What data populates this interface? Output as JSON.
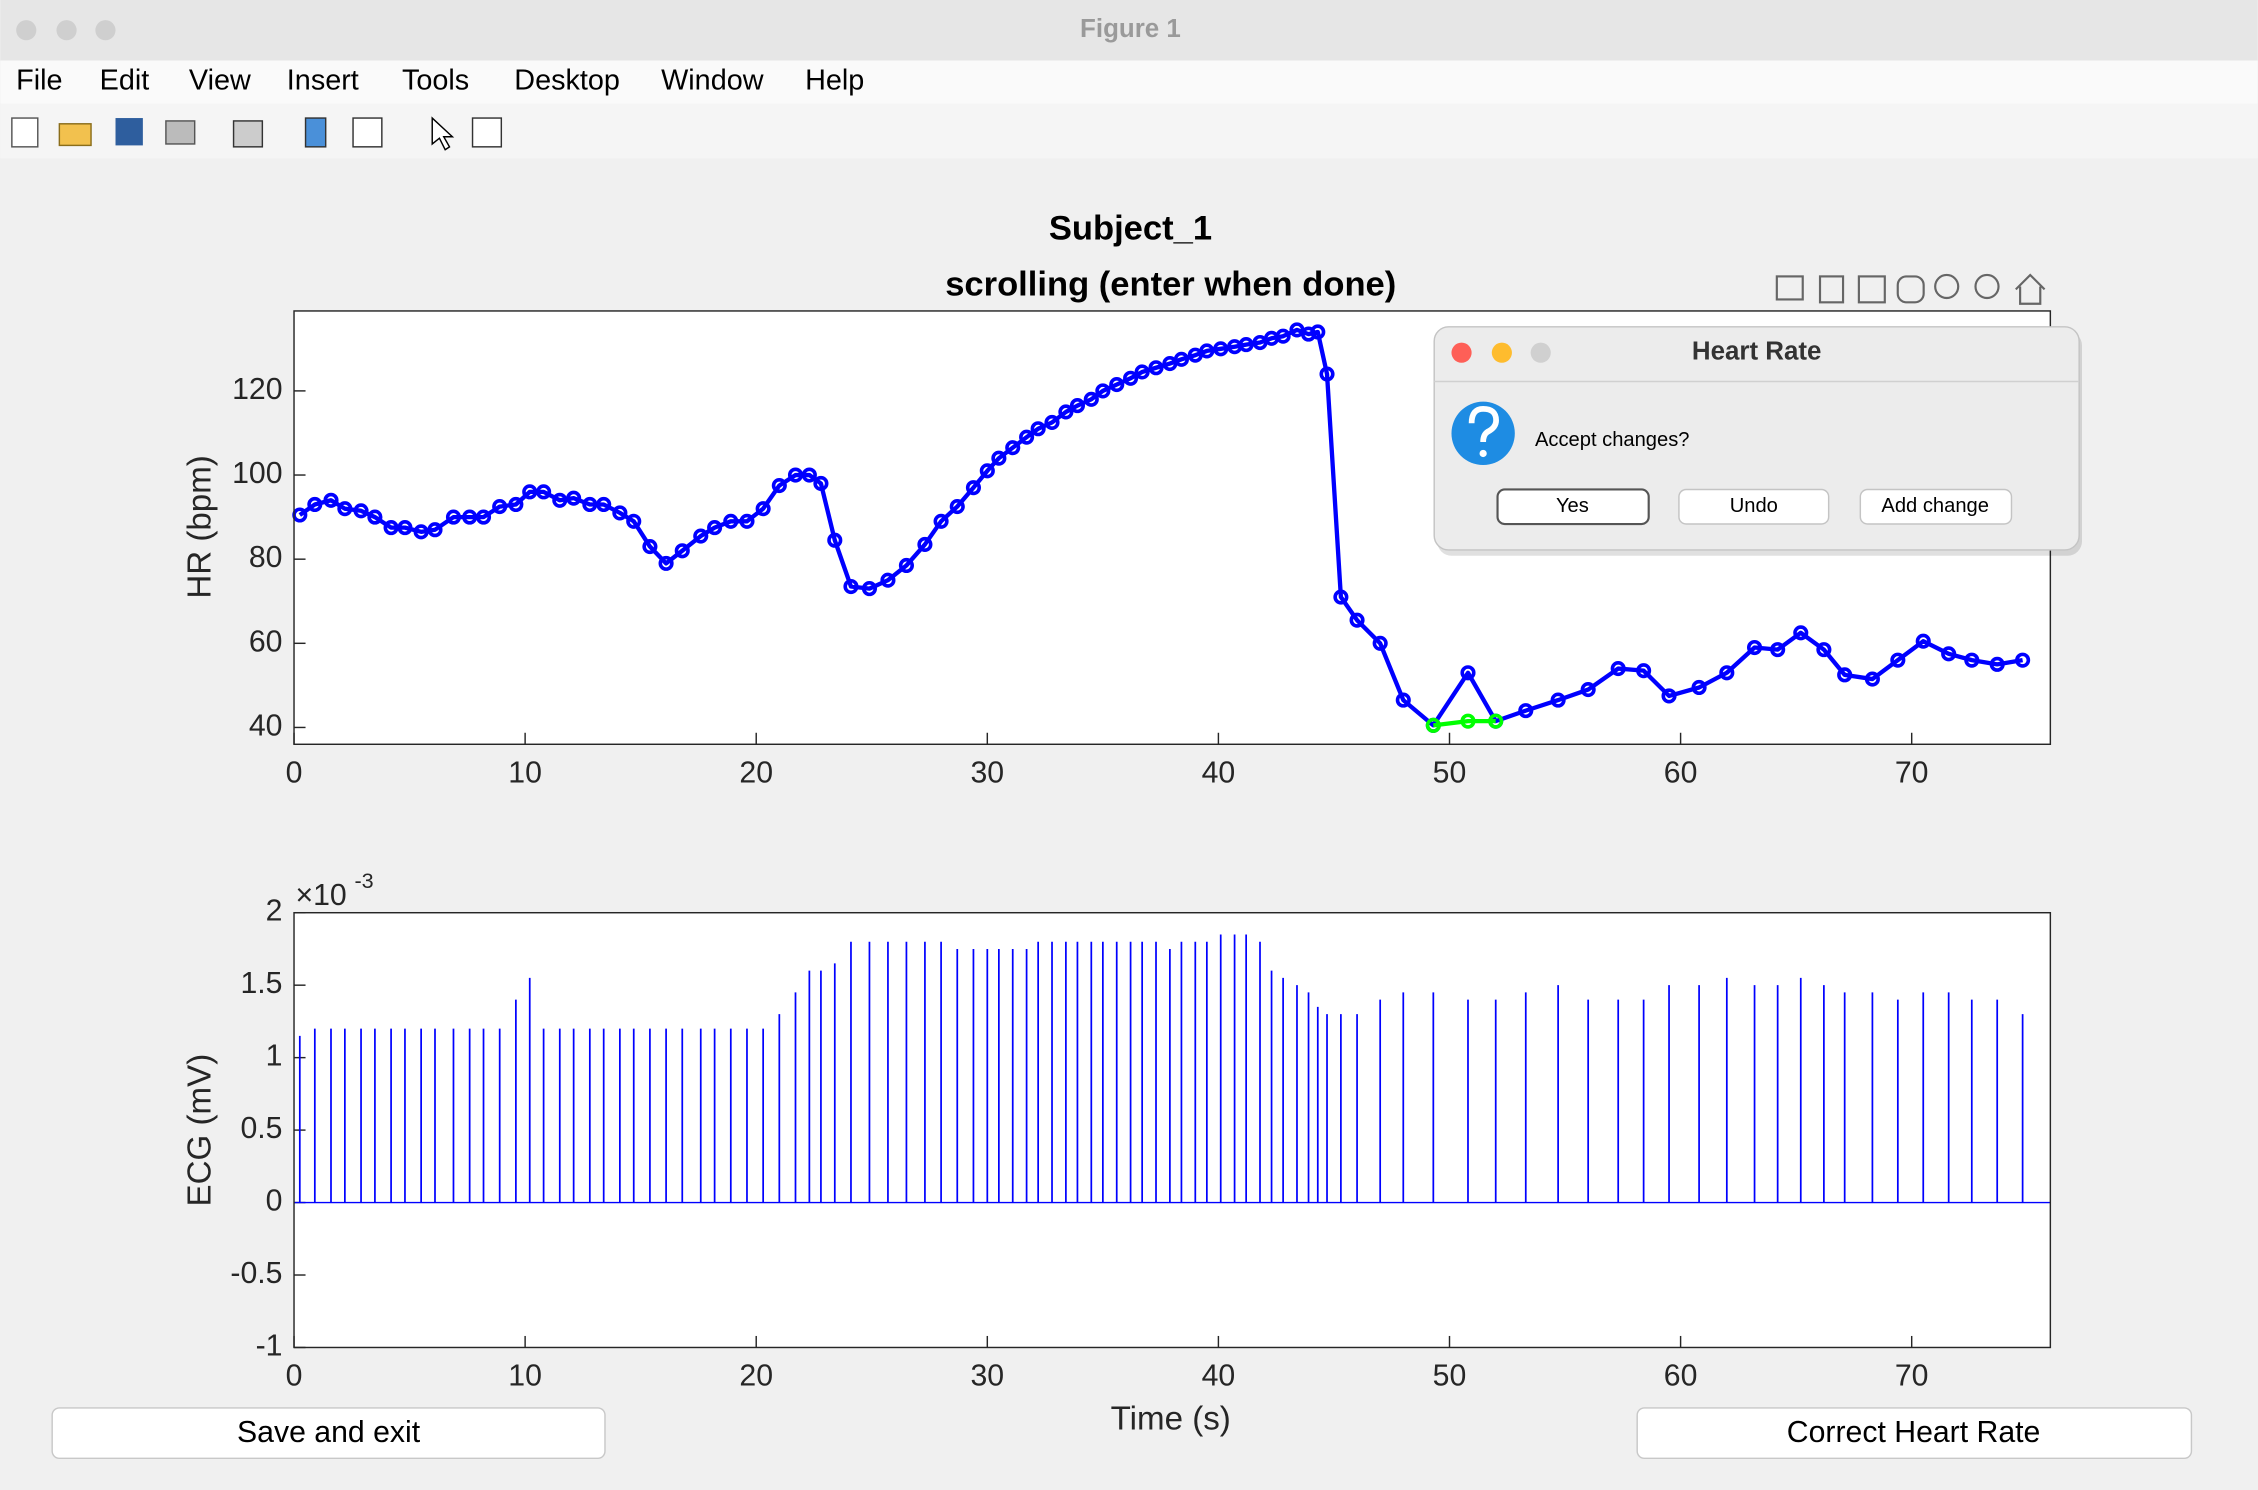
{
  "window": {
    "title": "Figure 1",
    "menu": [
      "File",
      "Edit",
      "View",
      "Insert",
      "Tools",
      "Desktop",
      "Window",
      "Help"
    ]
  },
  "chart_data": [
    {
      "type": "line",
      "title": "Subject_1",
      "subtitle": "scrolling (enter when done)",
      "y_label": "HR (bpm)",
      "xlim": [
        0,
        76
      ],
      "ylim": [
        36,
        139
      ],
      "xticks": [
        0,
        10,
        20,
        30,
        40,
        50,
        60,
        70
      ],
      "yticks": [
        40,
        60,
        80,
        100,
        120
      ],
      "series": [
        {
          "color": "#0000ff",
          "x": [
            0.25,
            0.9,
            1.6,
            2.2,
            2.9,
            3.5,
            4.2,
            4.8,
            5.5,
            6.1,
            6.9,
            7.6,
            8.2,
            8.9,
            9.6,
            10.2,
            10.8,
            11.5,
            12.1,
            12.8,
            13.4,
            14.1,
            14.7,
            15.4,
            16.1,
            16.8,
            17.6,
            18.2,
            18.9,
            19.6,
            20.3,
            21.0,
            21.7,
            22.3,
            22.8,
            23.4,
            24.1,
            24.9,
            25.7,
            26.5,
            27.3,
            28.0,
            28.7,
            29.4,
            30.0,
            30.5,
            31.1,
            31.7,
            32.2,
            32.8,
            33.4,
            33.9,
            34.5,
            35.0,
            35.6,
            36.2,
            36.7,
            37.3,
            37.9,
            38.4,
            39.0,
            39.5,
            40.1,
            40.7,
            41.2,
            41.8,
            42.3,
            42.8,
            43.4,
            43.9,
            44.3,
            44.7,
            45.3,
            46.0,
            47.0,
            48.0,
            49.3,
            50.8,
            52.0,
            53.3,
            54.7,
            56.0,
            57.3,
            58.4,
            59.5,
            60.8,
            62.0,
            63.2,
            64.2,
            65.2,
            66.2,
            67.1,
            68.3,
            69.4,
            70.5,
            71.6,
            72.6,
            73.7,
            74.8
          ],
          "values": [
            90.5,
            93,
            94,
            92,
            91.5,
            90,
            87.5,
            87.5,
            86.5,
            87,
            90,
            90,
            90,
            92.5,
            93,
            96,
            96,
            94,
            94.5,
            93,
            93,
            91,
            89,
            83,
            79,
            82,
            85.5,
            87.5,
            89,
            89,
            92,
            97.5,
            100,
            100,
            98,
            84.5,
            73.5,
            73,
            75,
            78.5,
            83.5,
            89,
            92.5,
            97,
            101,
            104,
            106.5,
            109,
            111,
            112.5,
            115,
            116.5,
            118,
            120,
            121.5,
            123,
            124.5,
            125.5,
            126.5,
            127.5,
            128.5,
            129.5,
            130,
            130.5,
            131,
            131.5,
            132.5,
            133,
            134.5,
            133.5,
            134,
            124,
            71,
            65.5,
            60,
            46.5,
            40.5,
            53,
            41.5,
            44,
            46.5,
            49,
            54,
            53.5,
            47.5,
            49.5,
            53,
            59,
            58.5,
            62.5,
            58.5,
            52.5,
            51.5,
            56,
            60.5,
            57.5,
            56,
            55,
            56
          ]
        },
        {
          "color": "#00ff00",
          "x": [
            49.3,
            50.8,
            52.0
          ],
          "values": [
            40.5,
            41.5,
            41.5
          ]
        }
      ]
    },
    {
      "type": "stem",
      "x_label": "Time (s)",
      "y_label": "ECG (mV)",
      "y_exponent_base": "×10",
      "y_exponent": "-3",
      "xlim": [
        0,
        76
      ],
      "ylim": [
        -1,
        2
      ],
      "xticks": [
        0,
        10,
        20,
        30,
        40,
        50,
        60,
        70
      ],
      "yticks": [
        -1,
        -0.5,
        0,
        0.5,
        1,
        1.5,
        2
      ],
      "series": [
        {
          "color": "#0000ff",
          "x": [
            0.25,
            0.9,
            1.6,
            2.2,
            2.9,
            3.5,
            4.2,
            4.8,
            5.5,
            6.1,
            6.9,
            7.6,
            8.2,
            8.9,
            9.6,
            10.2,
            10.8,
            11.5,
            12.1,
            12.8,
            13.4,
            14.1,
            14.7,
            15.4,
            16.1,
            16.8,
            17.6,
            18.2,
            18.9,
            19.6,
            20.3,
            21.0,
            21.7,
            22.3,
            22.8,
            23.4,
            24.1,
            24.9,
            25.7,
            26.5,
            27.3,
            28.0,
            28.7,
            29.4,
            30.0,
            30.5,
            31.1,
            31.7,
            32.2,
            32.8,
            33.4,
            33.9,
            34.5,
            35.0,
            35.6,
            36.2,
            36.7,
            37.3,
            37.9,
            38.4,
            39.0,
            39.5,
            40.1,
            40.7,
            41.2,
            41.8,
            42.3,
            42.8,
            43.4,
            43.9,
            44.3,
            44.7,
            45.3,
            46.0,
            47.0,
            48.0,
            49.3,
            50.8,
            52.0,
            53.3,
            54.7,
            56.0,
            57.3,
            58.4,
            59.5,
            60.8,
            62.0,
            63.2,
            64.2,
            65.2,
            66.2,
            67.1,
            68.3,
            69.4,
            70.5,
            71.6,
            72.6,
            73.7,
            74.8
          ],
          "values": [
            1.15,
            1.2,
            1.2,
            1.2,
            1.2,
            1.2,
            1.2,
            1.2,
            1.2,
            1.2,
            1.2,
            1.2,
            1.2,
            1.2,
            1.4,
            1.55,
            1.2,
            1.2,
            1.2,
            1.2,
            1.2,
            1.2,
            1.2,
            1.2,
            1.2,
            1.2,
            1.2,
            1.2,
            1.2,
            1.2,
            1.2,
            1.3,
            1.45,
            1.6,
            1.6,
            1.65,
            1.8,
            1.8,
            1.8,
            1.8,
            1.8,
            1.8,
            1.75,
            1.75,
            1.75,
            1.75,
            1.75,
            1.75,
            1.8,
            1.8,
            1.8,
            1.8,
            1.8,
            1.8,
            1.8,
            1.8,
            1.8,
            1.8,
            1.75,
            1.8,
            1.8,
            1.8,
            1.85,
            1.85,
            1.85,
            1.8,
            1.6,
            1.55,
            1.5,
            1.45,
            1.35,
            1.3,
            1.3,
            1.3,
            1.4,
            1.45,
            1.45,
            1.4,
            1.4,
            1.45,
            1.5,
            1.4,
            1.4,
            1.4,
            1.5,
            1.5,
            1.55,
            1.5,
            1.5,
            1.55,
            1.5,
            1.45,
            1.45,
            1.4,
            1.45,
            1.45,
            1.4,
            1.4,
            1.3
          ]
        }
      ]
    }
  ],
  "buttons": [
    "Save and exit",
    "Correct Heart Rate"
  ],
  "dialog": {
    "title": "Heart Rate",
    "message": "Accept changes?",
    "buttons": [
      "Yes",
      "Undo",
      "Add change"
    ]
  }
}
